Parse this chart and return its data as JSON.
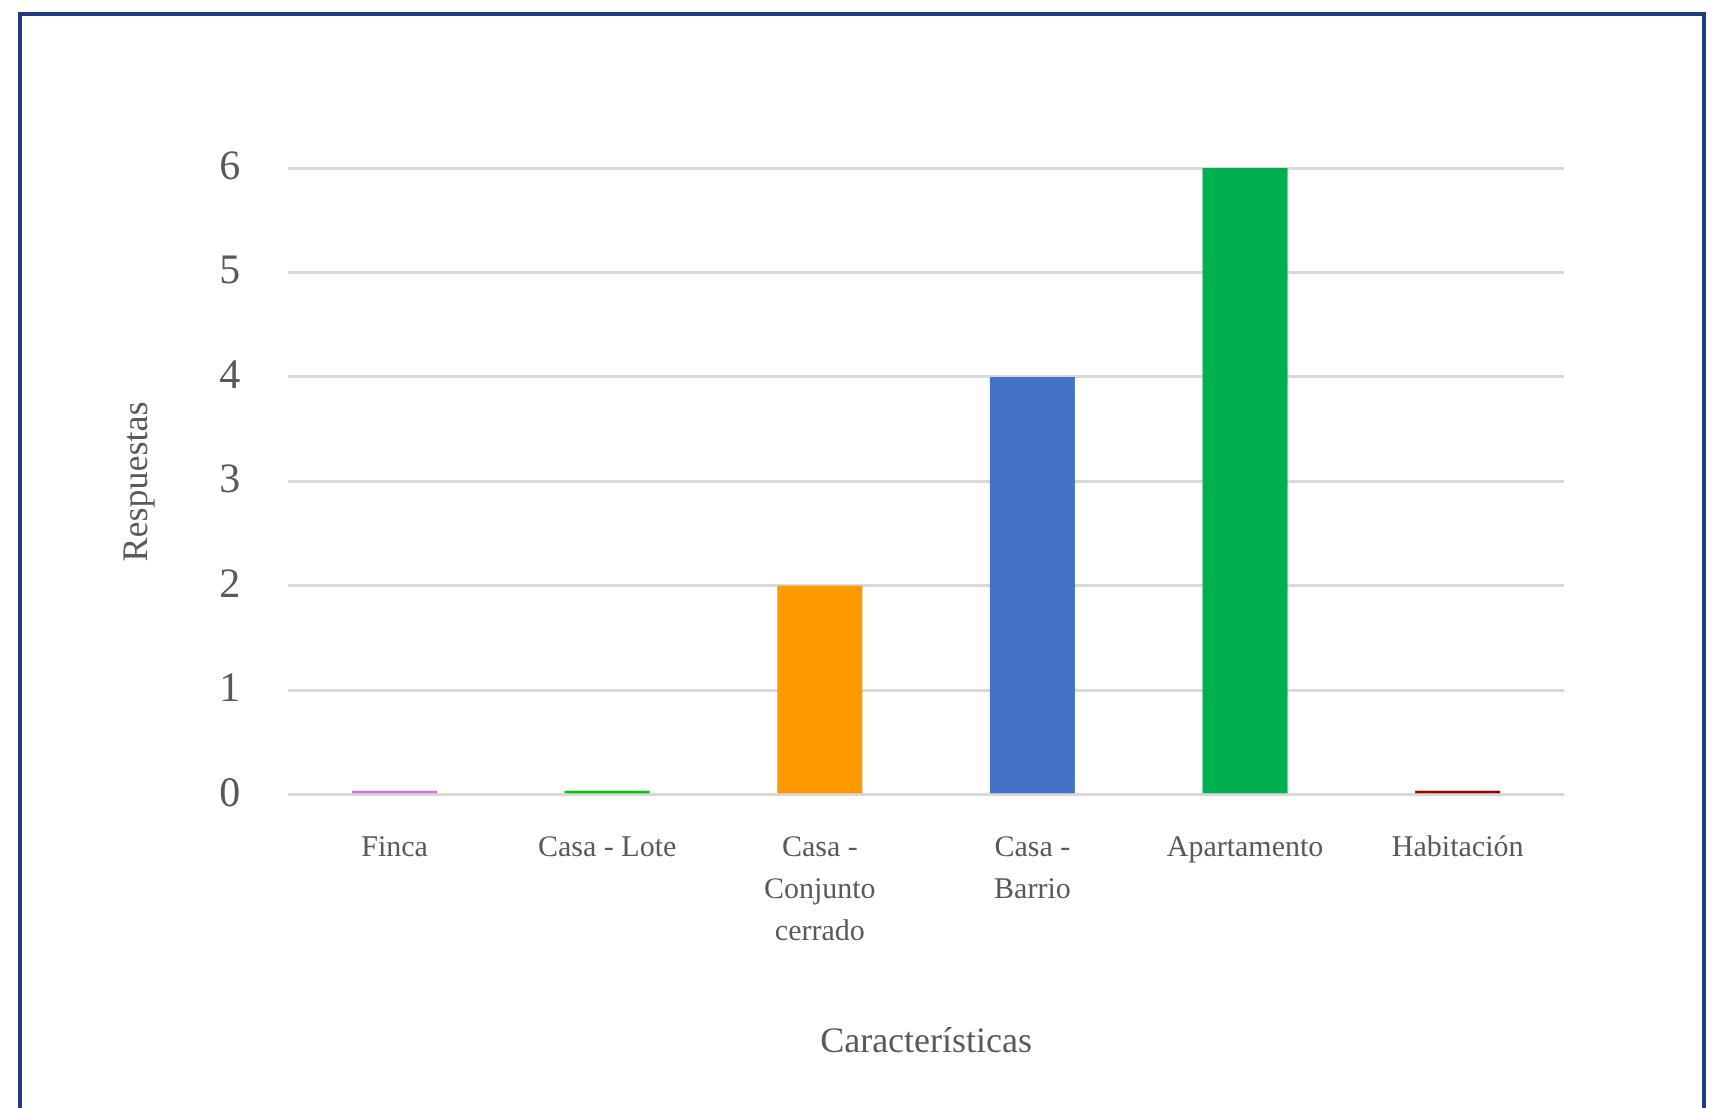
{
  "chart_data": {
    "type": "bar",
    "categories": [
      "Finca",
      "Casa - Lote",
      "Casa - Conjunto cerrado",
      "Casa - Barrio",
      "Apartamento",
      "Habitación"
    ],
    "values": [
      0,
      0,
      2,
      4,
      6,
      0
    ],
    "colors": [
      "#c778c6",
      "#00c400",
      "#ff9900",
      "#4472c4",
      "#00b050",
      "#990000"
    ],
    "xlabel": "Características",
    "ylabel": "Respuestas",
    "ylim": [
      0,
      6
    ],
    "yticks": [
      0,
      1,
      2,
      3,
      4,
      5,
      6
    ],
    "grid": "y"
  }
}
